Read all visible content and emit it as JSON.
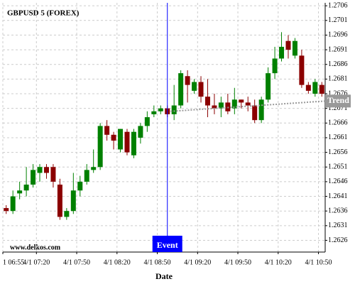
{
  "chart_data": {
    "type": "candlestick",
    "title": "GBPUSD 5 (FOREX)",
    "x_label": "Date",
    "watermark": "www.delkos.com",
    "categories": [
      "1 06:55",
      null,
      null,
      null,
      null,
      "4/1 07:20",
      null,
      null,
      null,
      null,
      null,
      "4/1 07:50",
      null,
      null,
      null,
      null,
      null,
      "4/1 08:20",
      null,
      null,
      null,
      null,
      null,
      "4/1 08:50",
      null,
      null,
      null,
      null,
      null,
      "4/1 09:20",
      null,
      null,
      null,
      null,
      null,
      "4/1 09:50",
      null,
      null,
      null,
      null,
      null,
      "4/1 10:20",
      null,
      null,
      null,
      null,
      null,
      "4/1 10:50"
    ],
    "open": [
      1.2637,
      1.2636,
      1.2642,
      1.2643,
      1.2645,
      1.2649,
      1.2651,
      1.2651,
      1.2645,
      1.2634,
      1.2636,
      1.2643,
      1.2646,
      1.265,
      1.2651,
      1.2665,
      1.2662,
      1.2657,
      1.2663,
      1.2655,
      1.2661,
      1.2665,
      1.2669,
      1.267,
      1.2671,
      1.2669,
      1.2672,
      1.2682,
      1.2677,
      1.268,
      1.2675,
      1.2672,
      1.2671,
      1.2673,
      1.2671,
      1.2674,
      1.2673,
      1.2672,
      1.2667,
      1.2674,
      1.2683,
      1.2688,
      1.2694,
      1.2689,
      1.2689,
      1.2679,
      1.2676,
      1.2679
    ],
    "high": [
      1.2638,
      1.2643,
      1.2646,
      1.2651,
      1.2652,
      1.2652,
      1.2652,
      1.2652,
      1.2647,
      1.2637,
      1.2649,
      1.2648,
      1.2652,
      1.2657,
      1.2666,
      1.2667,
      1.2663,
      1.2664,
      1.2664,
      1.2664,
      1.2666,
      1.267,
      1.2672,
      1.2672,
      1.2672,
      1.2679,
      1.2684,
      1.2684,
      1.2681,
      1.2682,
      1.2681,
      1.2676,
      1.2675,
      1.2676,
      1.2678,
      1.2674,
      1.2675,
      1.2674,
      1.2675,
      1.2685,
      1.2692,
      1.2697,
      1.2696,
      1.2695,
      1.2691,
      1.268,
      1.2681,
      1.268
    ],
    "low": [
      1.2635,
      1.2635,
      1.264,
      1.2641,
      1.2644,
      1.2646,
      1.2647,
      1.2644,
      1.2633,
      1.2633,
      1.2635,
      1.2641,
      1.2645,
      1.2649,
      1.265,
      1.266,
      1.2657,
      1.2656,
      1.2655,
      1.2654,
      1.2659,
      1.2663,
      1.2668,
      1.2669,
      1.2668,
      1.2667,
      1.2671,
      1.2673,
      1.2676,
      1.2673,
      1.2668,
      1.2669,
      1.2668,
      1.2669,
      1.2669,
      1.2671,
      1.267,
      1.2666,
      1.2666,
      1.2673,
      1.2681,
      1.2687,
      1.2688,
      1.2688,
      1.2678,
      1.2676,
      1.2675,
      1.2675
    ],
    "close": [
      1.2636,
      1.2641,
      1.2643,
      1.2645,
      1.265,
      1.2651,
      1.2649,
      1.2646,
      1.2634,
      1.2636,
      1.2643,
      1.2646,
      1.265,
      1.2651,
      1.2665,
      1.2662,
      1.266,
      1.2664,
      1.2656,
      1.2663,
      1.2665,
      1.2668,
      1.267,
      1.2671,
      1.2669,
      1.2672,
      1.2683,
      1.2679,
      1.268,
      1.2675,
      1.2672,
      1.2671,
      1.2673,
      1.267,
      1.2674,
      1.2673,
      1.2672,
      1.2667,
      1.2674,
      1.2683,
      1.2688,
      1.2692,
      1.2691,
      1.2694,
      1.2679,
      1.2677,
      1.268,
      1.2676
    ],
    "up_color": "#008000",
    "down_color": "#8b0000",
    "ylim": [
      1.2622,
      1.2707
    ],
    "yticks": [
      1.2626,
      1.2631,
      1.2636,
      1.2641,
      1.2646,
      1.2651,
      1.2656,
      1.2661,
      1.2666,
      1.2671,
      1.2676,
      1.2681,
      1.2686,
      1.2691,
      1.2696,
      1.2701,
      1.2706
    ],
    "grid": true,
    "event": {
      "label": "Event",
      "index": 24,
      "color": "#0000ff"
    },
    "trend": {
      "label": "Trend",
      "index": [
        25,
        48
      ],
      "values": [
        1.267,
        1.26735
      ],
      "color": "#999999"
    }
  }
}
